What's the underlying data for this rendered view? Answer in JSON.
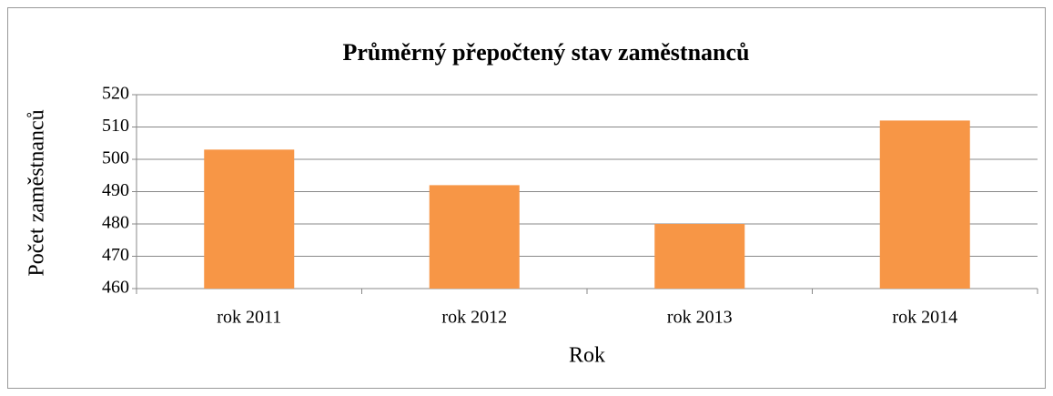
{
  "chart_data": {
    "type": "bar",
    "title": "Průměrný přepočtený stav zaměstnanců",
    "x_label": "Rok",
    "y_label": "Počet zaměstnanců",
    "categories": [
      "rok 2011",
      "rok 2012",
      "rok 2013",
      "rok 2014"
    ],
    "values": [
      503,
      492,
      480,
      512
    ],
    "color": "#f79646",
    "ylim": [
      460,
      520
    ],
    "yticks": [
      460,
      470,
      480,
      490,
      500,
      510,
      520
    ],
    "grid": true
  }
}
